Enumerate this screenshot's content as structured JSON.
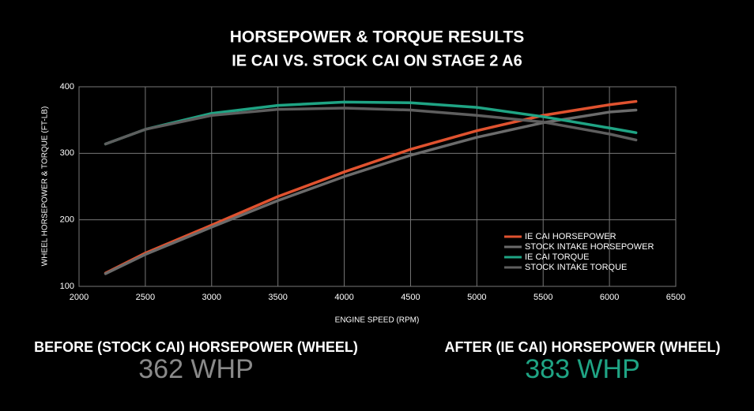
{
  "chart_data": {
    "type": "line",
    "title": "HORSEPOWER & TORQUE RESULTS",
    "subtitle": "IE CAI VS. STOCK CAI ON STAGE 2 A6",
    "x_label": "ENGINE SPEED (RPM)",
    "y_label": "WHEEL HORSEPOWER & TORQUE (FT-LB)",
    "x": [
      2200,
      2500,
      3000,
      3500,
      4000,
      4500,
      5000,
      5500,
      6000,
      6200
    ],
    "series": [
      {
        "name": "IE CAI HORSEPOWER",
        "color": "#e0522f",
        "values": [
          120,
          150,
          192,
          235,
          272,
          306,
          334,
          357,
          373,
          378
        ]
      },
      {
        "name": "STOCK INTAKE HORSEPOWER",
        "color": "#6b6b6b",
        "values": [
          119,
          148,
          189,
          229,
          265,
          297,
          324,
          346,
          362,
          365
        ]
      },
      {
        "name": "IE CAI TORQUE",
        "color": "#1fa484",
        "values": [
          314,
          336,
          360,
          372,
          377,
          376,
          369,
          355,
          338,
          331
        ]
      },
      {
        "name": "STOCK INTAKE TORQUE",
        "color": "#5e5e5e",
        "values": [
          314,
          336,
          357,
          366,
          368,
          365,
          357,
          347,
          329,
          320
        ]
      }
    ],
    "xlim": [
      2000,
      6500
    ],
    "xticks": [
      2000,
      2500,
      3000,
      3500,
      4000,
      4500,
      5000,
      5500,
      6000,
      6500
    ],
    "ylim": [
      100,
      400
    ],
    "yticks": [
      100,
      200,
      300,
      400
    ],
    "grid": true,
    "legend": "lower right"
  },
  "callouts": [
    {
      "label": "BEFORE (STOCK CAI) HORSEPOWER (WHEEL)",
      "value": "362 WHP",
      "color": "#8a8a8a"
    },
    {
      "label": "AFTER (IE CAI) HORSEPOWER (WHEEL)",
      "value": "383 WHP",
      "color": "#1fa484"
    }
  ]
}
